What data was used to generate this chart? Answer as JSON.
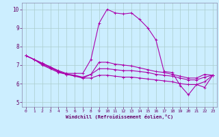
{
  "xlabel": "Windchill (Refroidissement éolien,°C)",
  "background_color": "#cceeff",
  "grid_color": "#aacccc",
  "line_color": "#aa00aa",
  "spine_color": "#8888aa",
  "xlim": [
    -0.5,
    23.5
  ],
  "ylim": [
    4.75,
    10.35
  ],
  "xticks": [
    0,
    1,
    2,
    3,
    4,
    5,
    6,
    7,
    8,
    9,
    10,
    11,
    12,
    13,
    14,
    15,
    16,
    17,
    18,
    19,
    20,
    21,
    22,
    23
  ],
  "yticks": [
    5,
    6,
    7,
    8,
    9,
    10
  ],
  "curves": [
    {
      "x": [
        0,
        1,
        2,
        3,
        4,
        5,
        6,
        7,
        8,
        9,
        10,
        11,
        12,
        13,
        14,
        15,
        16,
        17,
        18,
        19,
        20,
        21,
        22,
        23
      ],
      "y": [
        7.5,
        7.3,
        7.1,
        6.9,
        6.7,
        6.55,
        6.55,
        6.55,
        7.3,
        9.25,
        10.0,
        9.8,
        9.75,
        9.8,
        9.45,
        9.0,
        8.35,
        6.65,
        6.6,
        5.9,
        5.4,
        5.95,
        5.8,
        6.45
      ]
    },
    {
      "x": [
        0,
        1,
        2,
        3,
        4,
        5,
        6,
        7,
        8,
        9,
        10,
        11,
        12,
        13,
        14,
        15,
        16,
        17,
        18,
        19,
        20,
        21,
        22,
        23
      ],
      "y": [
        7.5,
        7.3,
        7.1,
        6.9,
        6.65,
        6.5,
        6.4,
        6.3,
        6.5,
        7.15,
        7.15,
        7.05,
        7.0,
        6.95,
        6.85,
        6.75,
        6.65,
        6.6,
        6.5,
        6.4,
        6.3,
        6.3,
        6.5,
        6.45
      ]
    },
    {
      "x": [
        0,
        1,
        2,
        3,
        4,
        5,
        6,
        7,
        8,
        9,
        10,
        11,
        12,
        13,
        14,
        15,
        16,
        17,
        18,
        19,
        20,
        21,
        22,
        23
      ],
      "y": [
        7.5,
        7.3,
        7.05,
        6.85,
        6.65,
        6.5,
        6.45,
        6.35,
        6.5,
        6.8,
        6.8,
        6.75,
        6.7,
        6.7,
        6.65,
        6.6,
        6.5,
        6.45,
        6.4,
        6.3,
        6.2,
        6.2,
        6.35,
        6.45
      ]
    },
    {
      "x": [
        0,
        1,
        2,
        3,
        4,
        5,
        6,
        7,
        8,
        9,
        10,
        11,
        12,
        13,
        14,
        15,
        16,
        17,
        18,
        19,
        20,
        21,
        22,
        23
      ],
      "y": [
        7.5,
        7.3,
        7.0,
        6.8,
        6.6,
        6.5,
        6.45,
        6.3,
        6.3,
        6.45,
        6.45,
        6.4,
        6.35,
        6.35,
        6.3,
        6.25,
        6.2,
        6.15,
        6.1,
        6.0,
        5.95,
        5.95,
        6.1,
        6.45
      ]
    }
  ]
}
